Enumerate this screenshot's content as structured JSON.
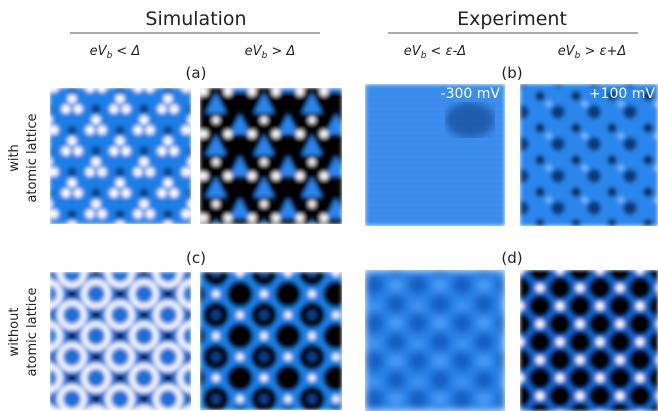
{
  "headers": [
    {
      "title": "Simulation",
      "columns": [
        {
          "pre": "eV",
          "sub": "b",
          "post": " < Δ"
        },
        {
          "pre": "eV",
          "sub": "b",
          "post": " > Δ"
        }
      ]
    },
    {
      "title": "Experiment",
      "columns": [
        {
          "pre": "eV",
          "sub": "b",
          "post": " < ε-Δ"
        },
        {
          "pre": "eV",
          "sub": "b",
          "post": " > ε+Δ"
        }
      ]
    }
  ],
  "panels": [
    "(a)",
    "(b)",
    "(c)",
    "(d)"
  ],
  "bias_labels": [
    "-300 mV",
    "+100 mV"
  ],
  "row_labels": [
    [
      "with",
      "atomic lattice"
    ],
    [
      "without",
      "atomic lattice"
    ]
  ]
}
